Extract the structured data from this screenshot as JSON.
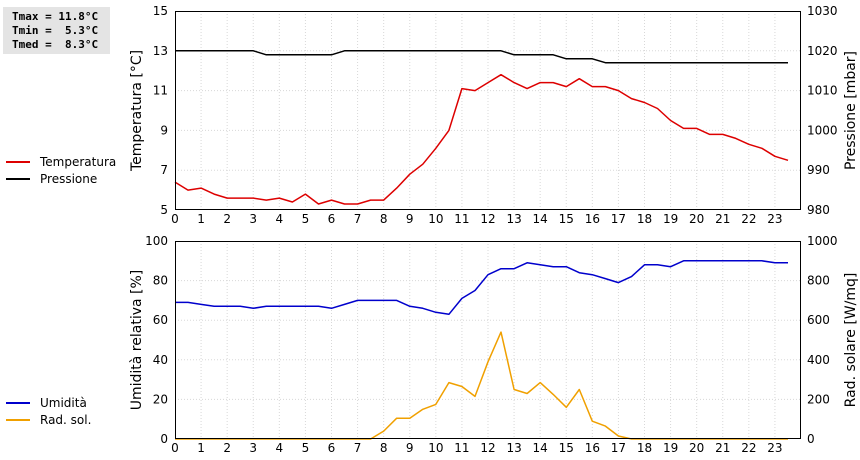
{
  "stats": {
    "tmax": "Tmax = 11.8°C",
    "tmin": "Tmin =  5.3°C",
    "tmed": "Tmed =  8.3°C"
  },
  "colors": {
    "temperature": "#dd0000",
    "pressure": "#000000",
    "humidity": "#0000cc",
    "radiation": "#f0a000"
  },
  "chart_data": [
    {
      "type": "line",
      "x_ticks": [
        "0",
        "1",
        "2",
        "3",
        "4",
        "5",
        "6",
        "7",
        "8",
        "9",
        "10",
        "11",
        "12",
        "13",
        "14",
        "15",
        "16",
        "17",
        "18",
        "19",
        "20",
        "21",
        "22",
        "23"
      ],
      "ylabel_left": "Temperatura [°C]",
      "ylabel_right": "Pressione [mbar]",
      "ylim_left": [
        5,
        15
      ],
      "ylim_right": [
        980,
        1030
      ],
      "yticks_left": [
        "5",
        "7",
        "9",
        "11",
        "13",
        "15"
      ],
      "yticks_right": [
        "980",
        "990",
        "1000",
        "1010",
        "1020",
        "1030"
      ],
      "grid": true,
      "series": [
        {
          "name": "Temperatura",
          "axis": "left",
          "x": [
            0,
            0.5,
            1,
            1.5,
            2,
            2.5,
            3,
            3.5,
            4,
            4.5,
            5,
            5.5,
            6,
            6.5,
            7,
            7.5,
            8,
            8.5,
            9,
            9.5,
            10,
            10.5,
            11,
            11.5,
            12,
            12.5,
            13,
            13.5,
            14,
            14.5,
            15,
            15.5,
            16,
            16.5,
            17,
            17.5,
            18,
            18.5,
            19,
            19.5,
            20,
            20.5,
            21,
            21.5,
            22,
            22.5,
            23,
            23.5
          ],
          "y": [
            6.4,
            6.0,
            6.1,
            5.8,
            5.6,
            5.6,
            5.6,
            5.5,
            5.6,
            5.4,
            5.8,
            5.3,
            5.5,
            5.3,
            5.3,
            5.5,
            5.5,
            6.1,
            6.8,
            7.3,
            8.1,
            9.0,
            11.1,
            11.0,
            11.4,
            11.8,
            11.4,
            11.1,
            11.4,
            11.4,
            11.2,
            11.6,
            11.2,
            11.2,
            11.0,
            10.6,
            10.4,
            10.1,
            9.5,
            9.1,
            9.1,
            8.8,
            8.8,
            8.6,
            8.3,
            8.1,
            7.7,
            7.5
          ]
        },
        {
          "name": "Pressione",
          "axis": "right",
          "x": [
            0,
            0.5,
            1,
            1.5,
            2,
            2.5,
            3,
            3.5,
            4,
            4.5,
            5,
            5.5,
            6,
            6.5,
            7,
            7.5,
            8,
            8.5,
            9,
            9.5,
            10,
            10.5,
            11,
            11.5,
            12,
            12.5,
            13,
            13.5,
            14,
            14.5,
            15,
            15.5,
            16,
            16.5,
            17,
            17.5,
            18,
            18.5,
            19,
            19.5,
            20,
            20.5,
            21,
            21.5,
            22,
            22.5,
            23,
            23.5
          ],
          "y": [
            1020,
            1020,
            1020,
            1020,
            1020,
            1020,
            1020,
            1019,
            1019,
            1019,
            1019,
            1019,
            1019,
            1020,
            1020,
            1020,
            1020,
            1020,
            1020,
            1020,
            1020,
            1020,
            1020,
            1020,
            1020,
            1020,
            1019,
            1019,
            1019,
            1019,
            1018,
            1018,
            1018,
            1017,
            1017,
            1017,
            1017,
            1017,
            1017,
            1017,
            1017,
            1017,
            1017,
            1017,
            1017,
            1017,
            1017,
            1017
          ]
        }
      ]
    },
    {
      "type": "line",
      "x_ticks": [
        "0",
        "1",
        "2",
        "3",
        "4",
        "5",
        "6",
        "7",
        "8",
        "9",
        "10",
        "11",
        "12",
        "13",
        "14",
        "15",
        "16",
        "17",
        "18",
        "19",
        "20",
        "21",
        "22",
        "23"
      ],
      "ylabel_left": "Umidità relativa [%]",
      "ylabel_right": "Rad. solare [W/mq]",
      "ylim_left": [
        0,
        100
      ],
      "ylim_right": [
        0,
        1000
      ],
      "yticks_left": [
        "0",
        "20",
        "40",
        "60",
        "80",
        "100"
      ],
      "yticks_right": [
        "0",
        "200",
        "400",
        "600",
        "800",
        "1000"
      ],
      "grid": true,
      "series": [
        {
          "name": "Umidità",
          "axis": "left",
          "x": [
            0,
            0.5,
            1,
            1.5,
            2,
            2.5,
            3,
            3.5,
            4,
            4.5,
            5,
            5.5,
            6,
            6.5,
            7,
            7.5,
            8,
            8.5,
            9,
            9.5,
            10,
            10.5,
            11,
            11.5,
            12,
            12.5,
            13,
            13.5,
            14,
            14.5,
            15,
            15.5,
            16,
            16.5,
            17,
            17.5,
            18,
            18.5,
            19,
            19.5,
            20,
            20.5,
            21,
            21.5,
            22,
            22.5,
            23,
            23.5
          ],
          "y": [
            69,
            69,
            68,
            67,
            67,
            67,
            66,
            67,
            67,
            67,
            67,
            67,
            66,
            68,
            70,
            70,
            70,
            70,
            67,
            66,
            64,
            63,
            71,
            75,
            83,
            86,
            86,
            89,
            88,
            87,
            87,
            84,
            83,
            81,
            79,
            82,
            88,
            88,
            87,
            90,
            90,
            90,
            90,
            90,
            90,
            90,
            89,
            89
          ]
        },
        {
          "name": "Rad. sol.",
          "axis": "right",
          "x": [
            0,
            0.5,
            1,
            1.5,
            2,
            2.5,
            3,
            3.5,
            4,
            4.5,
            5,
            5.5,
            6,
            6.5,
            7,
            7.5,
            8,
            8.5,
            9,
            9.5,
            10,
            10.5,
            11,
            11.5,
            12,
            12.5,
            13,
            13.5,
            14,
            14.5,
            15,
            15.5,
            16,
            16.5,
            17,
            17.5,
            18,
            18.5,
            19,
            19.5,
            20,
            20.5,
            21,
            21.5,
            22,
            22.5,
            23,
            23.5
          ],
          "y": [
            0,
            0,
            0,
            0,
            0,
            0,
            0,
            0,
            0,
            0,
            0,
            0,
            0,
            0,
            0,
            0,
            40,
            105,
            105,
            150,
            175,
            285,
            265,
            215,
            390,
            540,
            250,
            230,
            285,
            225,
            160,
            250,
            90,
            65,
            15,
            0,
            0,
            0,
            0,
            0,
            0,
            0,
            0,
            0,
            0,
            0,
            0,
            0
          ]
        }
      ]
    }
  ]
}
